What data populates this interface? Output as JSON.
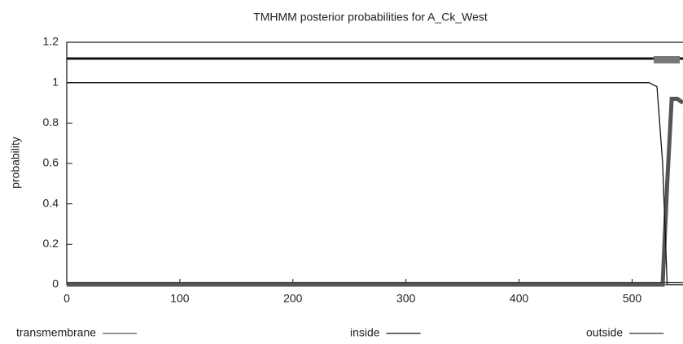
{
  "chart_data": {
    "type": "line",
    "title": "TMHMM posterior probabilities for A_Ck_West",
    "ylabel": "probability",
    "xlim": [
      0,
      545
    ],
    "ylim": [
      0,
      1.2
    ],
    "xticks": [
      0,
      100,
      200,
      300,
      400,
      500
    ],
    "yticks": [
      0,
      0.2,
      0.4,
      0.6,
      0.8,
      1,
      1.2
    ],
    "series": [
      {
        "name": "transmembrane",
        "color": "#555555",
        "x": [
          0,
          527,
          531,
          535,
          540,
          545
        ],
        "values": [
          0,
          0,
          0.5,
          0.92,
          0.92,
          0.9
        ]
      },
      {
        "name": "inside",
        "color": "#111111",
        "x": [
          0,
          515,
          522,
          527,
          531,
          545
        ],
        "values": [
          1,
          1,
          0.98,
          0.6,
          0,
          0
        ]
      },
      {
        "name": "outside",
        "color": "#333333",
        "x": [
          0,
          525,
          545
        ],
        "values": [
          0.01,
          0.01,
          0.01
        ]
      }
    ]
  }
}
